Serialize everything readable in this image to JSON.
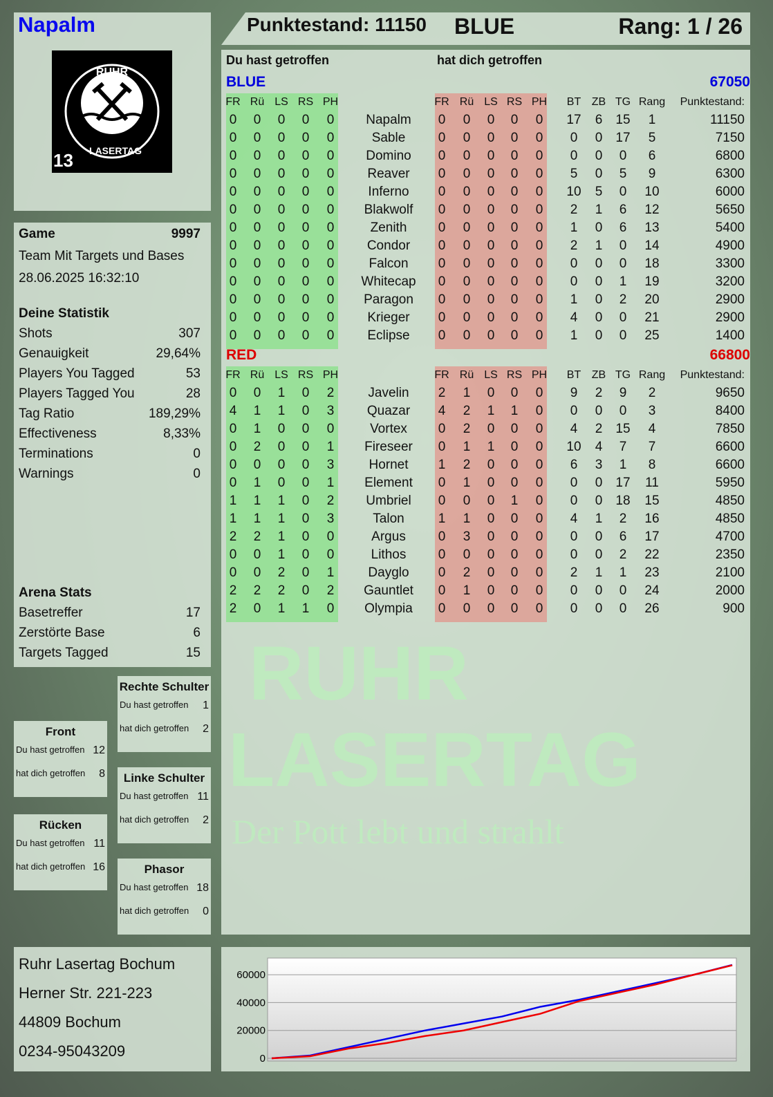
{
  "player": {
    "name": "Napalm",
    "logo_text": "RUHR LASERTAG",
    "logo_number": "13"
  },
  "header": {
    "score_label": "Punktestand: 11150",
    "team": "BLUE",
    "rank_label": "Rang: 1 / 26"
  },
  "main": {
    "you_hit_label": "Du hast getroffen",
    "hit_you_label": "hat dich getroffen",
    "columns": {
      "hits": [
        "FR",
        "Rü",
        "LS",
        "RS",
        "PH"
      ],
      "stats": [
        "BT",
        "ZB",
        "TG",
        "Rang"
      ],
      "score": "Punktestand:"
    },
    "teams": [
      {
        "name": "BLUE",
        "total": "67050",
        "color": "#0000dd",
        "rows": [
          {
            "n": "Napalm",
            "h": [
              0,
              0,
              0,
              0,
              0
            ],
            "g": [
              0,
              0,
              0,
              0,
              0
            ],
            "s": [
              17,
              6,
              15,
              1
            ],
            "p": 11150
          },
          {
            "n": "Sable",
            "h": [
              0,
              0,
              0,
              0,
              0
            ],
            "g": [
              0,
              0,
              0,
              0,
              0
            ],
            "s": [
              0,
              0,
              17,
              5
            ],
            "p": 7150
          },
          {
            "n": "Domino",
            "h": [
              0,
              0,
              0,
              0,
              0
            ],
            "g": [
              0,
              0,
              0,
              0,
              0
            ],
            "s": [
              0,
              0,
              0,
              6
            ],
            "p": 6800
          },
          {
            "n": "Reaver",
            "h": [
              0,
              0,
              0,
              0,
              0
            ],
            "g": [
              0,
              0,
              0,
              0,
              0
            ],
            "s": [
              5,
              0,
              5,
              9
            ],
            "p": 6300
          },
          {
            "n": "Inferno",
            "h": [
              0,
              0,
              0,
              0,
              0
            ],
            "g": [
              0,
              0,
              0,
              0,
              0
            ],
            "s": [
              10,
              5,
              0,
              10
            ],
            "p": 6000
          },
          {
            "n": "Blakwolf",
            "h": [
              0,
              0,
              0,
              0,
              0
            ],
            "g": [
              0,
              0,
              0,
              0,
              0
            ],
            "s": [
              2,
              1,
              6,
              12
            ],
            "p": 5650
          },
          {
            "n": "Zenith",
            "h": [
              0,
              0,
              0,
              0,
              0
            ],
            "g": [
              0,
              0,
              0,
              0,
              0
            ],
            "s": [
              1,
              0,
              6,
              13
            ],
            "p": 5400
          },
          {
            "n": "Condor",
            "h": [
              0,
              0,
              0,
              0,
              0
            ],
            "g": [
              0,
              0,
              0,
              0,
              0
            ],
            "s": [
              2,
              1,
              0,
              14
            ],
            "p": 4900
          },
          {
            "n": "Falcon",
            "h": [
              0,
              0,
              0,
              0,
              0
            ],
            "g": [
              0,
              0,
              0,
              0,
              0
            ],
            "s": [
              0,
              0,
              0,
              18
            ],
            "p": 3300
          },
          {
            "n": "Whitecap",
            "h": [
              0,
              0,
              0,
              0,
              0
            ],
            "g": [
              0,
              0,
              0,
              0,
              0
            ],
            "s": [
              0,
              0,
              1,
              19
            ],
            "p": 3200
          },
          {
            "n": "Paragon",
            "h": [
              0,
              0,
              0,
              0,
              0
            ],
            "g": [
              0,
              0,
              0,
              0,
              0
            ],
            "s": [
              1,
              0,
              2,
              20
            ],
            "p": 2900
          },
          {
            "n": "Krieger",
            "h": [
              0,
              0,
              0,
              0,
              0
            ],
            "g": [
              0,
              0,
              0,
              0,
              0
            ],
            "s": [
              4,
              0,
              0,
              21
            ],
            "p": 2900
          },
          {
            "n": "Eclipse",
            "h": [
              0,
              0,
              0,
              0,
              0
            ],
            "g": [
              0,
              0,
              0,
              0,
              0
            ],
            "s": [
              1,
              0,
              0,
              25
            ],
            "p": 1400
          }
        ]
      },
      {
        "name": "RED",
        "total": "66800",
        "color": "#dd0000",
        "rows": [
          {
            "n": "Javelin",
            "h": [
              0,
              0,
              1,
              0,
              2
            ],
            "g": [
              2,
              1,
              0,
              0,
              0
            ],
            "s": [
              9,
              2,
              9,
              2
            ],
            "p": 9650
          },
          {
            "n": "Quazar",
            "h": [
              4,
              1,
              1,
              0,
              3
            ],
            "g": [
              4,
              2,
              1,
              1,
              0
            ],
            "s": [
              0,
              0,
              0,
              3
            ],
            "p": 8400
          },
          {
            "n": "Vortex",
            "h": [
              0,
              1,
              0,
              0,
              0
            ],
            "g": [
              0,
              2,
              0,
              0,
              0
            ],
            "s": [
              4,
              2,
              15,
              4
            ],
            "p": 7850
          },
          {
            "n": "Fireseer",
            "h": [
              0,
              2,
              0,
              0,
              1
            ],
            "g": [
              0,
              1,
              1,
              0,
              0
            ],
            "s": [
              10,
              4,
              7,
              7
            ],
            "p": 6600
          },
          {
            "n": "Hornet",
            "h": [
              0,
              0,
              0,
              0,
              3
            ],
            "g": [
              1,
              2,
              0,
              0,
              0
            ],
            "s": [
              6,
              3,
              1,
              8
            ],
            "p": 6600
          },
          {
            "n": "Element",
            "h": [
              0,
              1,
              0,
              0,
              1
            ],
            "g": [
              0,
              1,
              0,
              0,
              0
            ],
            "s": [
              0,
              0,
              17,
              11
            ],
            "p": 5950
          },
          {
            "n": "Umbriel",
            "h": [
              1,
              1,
              1,
              0,
              2
            ],
            "g": [
              0,
              0,
              0,
              1,
              0
            ],
            "s": [
              0,
              0,
              18,
              15
            ],
            "p": 4850
          },
          {
            "n": "Talon",
            "h": [
              1,
              1,
              1,
              0,
              3
            ],
            "g": [
              1,
              1,
              0,
              0,
              0
            ],
            "s": [
              4,
              1,
              2,
              16
            ],
            "p": 4850
          },
          {
            "n": "Argus",
            "h": [
              2,
              2,
              1,
              0,
              0
            ],
            "g": [
              0,
              3,
              0,
              0,
              0
            ],
            "s": [
              0,
              0,
              6,
              17
            ],
            "p": 4700
          },
          {
            "n": "Lithos",
            "h": [
              0,
              0,
              1,
              0,
              0
            ],
            "g": [
              0,
              0,
              0,
              0,
              0
            ],
            "s": [
              0,
              0,
              2,
              22
            ],
            "p": 2350
          },
          {
            "n": "Dayglo",
            "h": [
              0,
              0,
              2,
              0,
              1
            ],
            "g": [
              0,
              2,
              0,
              0,
              0
            ],
            "s": [
              2,
              1,
              1,
              23
            ],
            "p": 2100
          },
          {
            "n": "Gauntlet",
            "h": [
              2,
              2,
              2,
              0,
              2
            ],
            "g": [
              0,
              1,
              0,
              0,
              0
            ],
            "s": [
              0,
              0,
              0,
              24
            ],
            "p": 2000
          },
          {
            "n": "Olympia",
            "h": [
              2,
              0,
              1,
              1,
              0
            ],
            "g": [
              0,
              0,
              0,
              0,
              0
            ],
            "s": [
              0,
              0,
              0,
              26
            ],
            "p": 900
          }
        ]
      }
    ]
  },
  "game": {
    "label": "Game",
    "id": "9997",
    "mode": "Team Mit Targets und Bases",
    "datetime": "28.06.2025 16:32:10"
  },
  "stats": {
    "title": "Deine Statistik",
    "items": [
      {
        "label": "Shots",
        "value": "307"
      },
      {
        "label": "Genauigkeit",
        "value": "29,64%"
      },
      {
        "label": "Players You Tagged",
        "value": "53"
      },
      {
        "label": "Players Tagged You",
        "value": "28"
      },
      {
        "label": "Tag Ratio",
        "value": "189,29%"
      },
      {
        "label": "Effectiveness",
        "value": "8,33%"
      },
      {
        "label": "Terminations",
        "value": "0"
      },
      {
        "label": "Warnings",
        "value": "0"
      }
    ]
  },
  "arena": {
    "title": "Arena Stats",
    "items": [
      {
        "label": "Basetreffer",
        "value": "17"
      },
      {
        "label": "Zerstörte Base",
        "value": "6"
      },
      {
        "label": "Targets Tagged",
        "value": "15"
      }
    ]
  },
  "zones": [
    {
      "title": "Rechte Schulter",
      "you_hit": "1",
      "hit_you": "2"
    },
    {
      "title": "Front",
      "you_hit": "12",
      "hit_you": "8"
    },
    {
      "title": "Linke Schulter",
      "you_hit": "11",
      "hit_you": "2"
    },
    {
      "title": "Rücken",
      "you_hit": "11",
      "hit_you": "16"
    },
    {
      "title": "Phasor",
      "you_hit": "18",
      "hit_you": "0"
    }
  ],
  "zone_labels": {
    "you_hit": "Du hast getroffen",
    "hit_you": "hat dich getroffen"
  },
  "address": [
    "Ruhr Lasertag Bochum",
    "Herner Str. 221-223",
    "44809 Bochum",
    "0234-95043209"
  ],
  "watermark": {
    "line1": "RUHR",
    "line2": "LASERTAG",
    "tagline": "Der Pott lebt und strahlt"
  },
  "chart_data": {
    "type": "line",
    "yticks": [
      0,
      20000,
      40000,
      60000
    ],
    "ylim": [
      0,
      70000
    ],
    "grid": true,
    "x": [
      0,
      1,
      2,
      3,
      4,
      5,
      6,
      7,
      8,
      9,
      10,
      11,
      12
    ],
    "series": [
      {
        "color": "#0000ee",
        "values": [
          0,
          2000,
          8000,
          14000,
          20000,
          25000,
          30000,
          37000,
          42000,
          48000,
          54000,
          60000,
          67050
        ]
      },
      {
        "color": "#ee0000",
        "values": [
          0,
          1500,
          7000,
          11000,
          16000,
          20000,
          26000,
          32000,
          41000,
          47000,
          53000,
          60000,
          66800
        ]
      }
    ]
  }
}
